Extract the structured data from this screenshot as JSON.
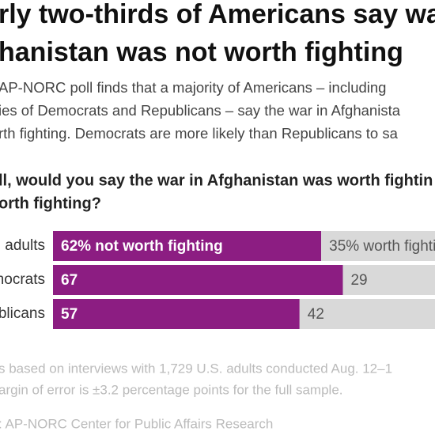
{
  "chart_data": {
    "type": "bar",
    "title": [
      "rly two-thirds of Americans say wa",
      "hanistan was not worth fighting"
    ],
    "subtitle": [
      "AP-NORC poll finds that a majority of Americans – including",
      "ies of Democrats and Republicans – say the war in Afghanista",
      "rth fighting. Democrats are more likely than Republicans to sa"
    ],
    "question": [
      "ll, would you say the war in Afghanistan was worth fightin",
      "orth fighting?"
    ],
    "categories": [
      "adults",
      "mocrats",
      "blicans"
    ],
    "series": [
      {
        "color": "#8c1d82",
        "values": [
          62,
          67,
          57
        ],
        "value_labels": [
          "62% not worth fighting",
          "67",
          "57"
        ]
      },
      {
        "color": "#d9d9d9",
        "values": [
          35,
          29,
          42
        ],
        "value_labels": [
          "35% worth fighti",
          "29",
          "42"
        ]
      }
    ],
    "xlim": [
      0,
      100
    ],
    "notes": [
      "s based on interviews with 1,729 U.S. adults conducted Aug. 12–1",
      "argin of error is ±3.2 percentage points for the full sample.",
      ": AP-NORC Center for Public Affairs Research"
    ]
  }
}
